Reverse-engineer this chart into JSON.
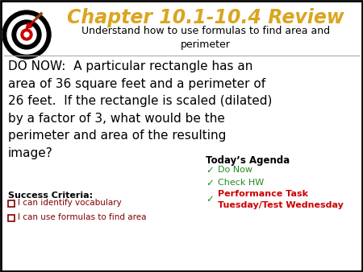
{
  "title": "Chapter 10.1-10.4 Review",
  "title_color": "#DAA520",
  "subtitle": "Understand how to use formulas to find area and\nperimeter",
  "subtitle_color": "#000000",
  "body_text": "DO NOW:  A particular rectangle has an\narea of 36 square feet and a perimeter of\n26 feet.  If the rectangle is scaled (dilated)\nby a factor of 3, what would be the\nperimeter and area of the resulting\nimage?",
  "body_color": "#000000",
  "success_label": "Success Criteria:",
  "success_items": [
    "I can identify vocabulary",
    "I can use formulas to find area"
  ],
  "success_color": "#000000",
  "success_item_color": "#800000",
  "agenda_label": "Today’s Agenda",
  "agenda_items": [
    {
      "text": "Do Now",
      "color": "#228B22",
      "bold": false
    },
    {
      "text": "Check HW",
      "color": "#228B22",
      "bold": false
    },
    {
      "text": "Performance Task\nTuesday/Test Wednesday",
      "color": "#CC0000",
      "bold": true
    }
  ],
  "background_color": "#FFFFFF",
  "border_color": "#000000"
}
